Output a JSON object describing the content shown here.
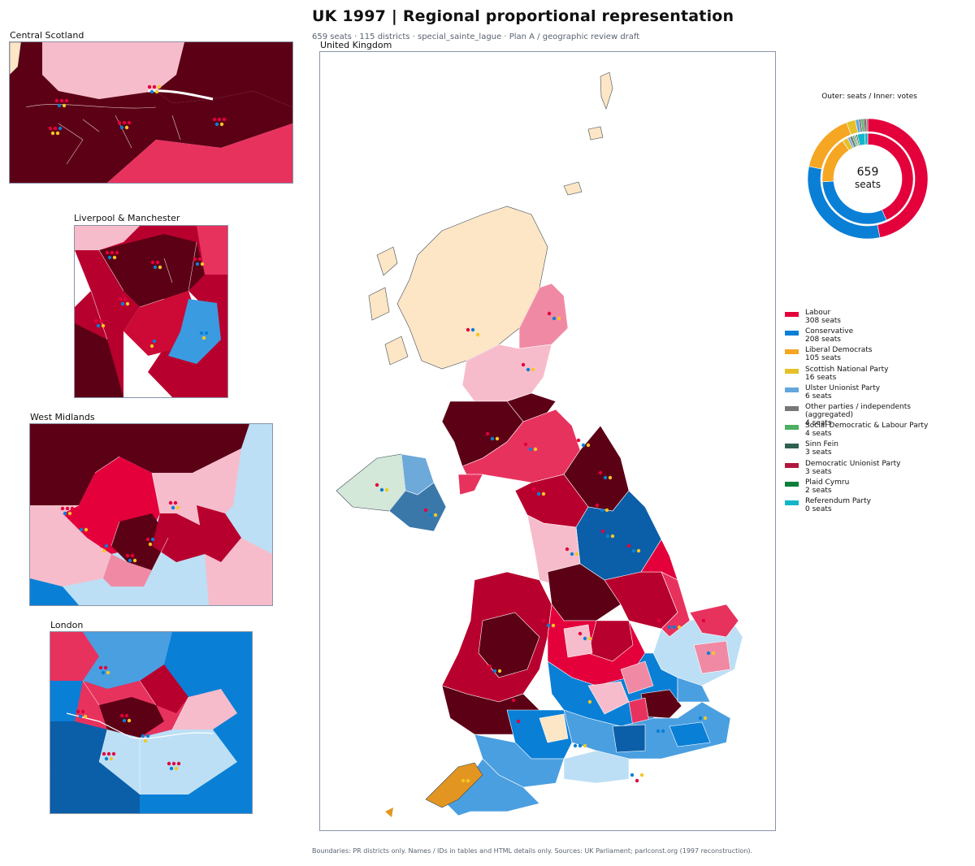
{
  "header": {
    "title": "UK 1997 | Regional proportional representation",
    "subtitle": "659 seats · 115 districts · special_sainte_lague · Plan A / geographic review draft"
  },
  "footer": "Boundaries: PR districts only. Names / IDs in tables and HTML details only. Sources: UK Parliament; parlconst.org (1997 reconstruction).",
  "panels": {
    "main": "United Kingdom",
    "central_scotland": "Central Scotland",
    "liverpool_manchester": "Liverpool & Manchester",
    "west_midlands": "West Midlands",
    "london": "London"
  },
  "donut": {
    "title": "Outer: seats / Inner: votes",
    "total_number": "659",
    "total_label": "seats"
  },
  "colors": {
    "labour_dark": "#5c0016",
    "labour_mid": "#b8002e",
    "labour": "#e3003b",
    "labour_light": "#f08aa4",
    "labour_pale": "#f7bccb",
    "labour_salmon": "#e8325e",
    "con_dark": "#0b5ea8",
    "con": "#0a7fd6",
    "con_light": "#4a9fe0",
    "con_pale": "#bcdff5",
    "ld": "#f0a01c",
    "snp_region": "#fde6c5",
    "ni_green": "#d3e8d8",
    "ni_blue": "#6da9d9",
    "ni_dark": "#3b78aa",
    "water": "#ffffff",
    "border": "#ffffff",
    "outline": "#404a5c"
  },
  "chart_data": {
    "type": "pie",
    "total_seats": 659,
    "parties": [
      {
        "name": "Labour",
        "seats": 308,
        "color": "#e3003b"
      },
      {
        "name": "Conservative",
        "seats": 208,
        "color": "#0a7fd6"
      },
      {
        "name": "Liberal Democrats",
        "seats": 105,
        "color": "#f5a623"
      },
      {
        "name": "Scottish National Party",
        "seats": 16,
        "color": "#e5c02a"
      },
      {
        "name": "Ulster Unionist Party",
        "seats": 6,
        "color": "#62a6dd"
      },
      {
        "name": "Other parties / independents (aggregated)",
        "seats": 4,
        "color": "#777777"
      },
      {
        "name": "Social Democratic & Labour Party",
        "seats": 4,
        "color": "#4caf62"
      },
      {
        "name": "Sinn Fein",
        "seats": 3,
        "color": "#2f6150"
      },
      {
        "name": "Democratic Unionist Party",
        "seats": 3,
        "color": "#b0183f"
      },
      {
        "name": "Plaid Cymru",
        "seats": 2,
        "color": "#0a7f3b"
      },
      {
        "name": "Referendum Party",
        "seats": 0,
        "color": "#13b5c9"
      }
    ],
    "vote_share_pct": [
      43.2,
      30.7,
      16.8,
      2.0,
      0.8,
      1.0,
      0.6,
      0.4,
      0.3,
      0.5,
      2.6,
      1.1
    ],
    "legend_placement": "right"
  },
  "legend_suffix": "seats"
}
